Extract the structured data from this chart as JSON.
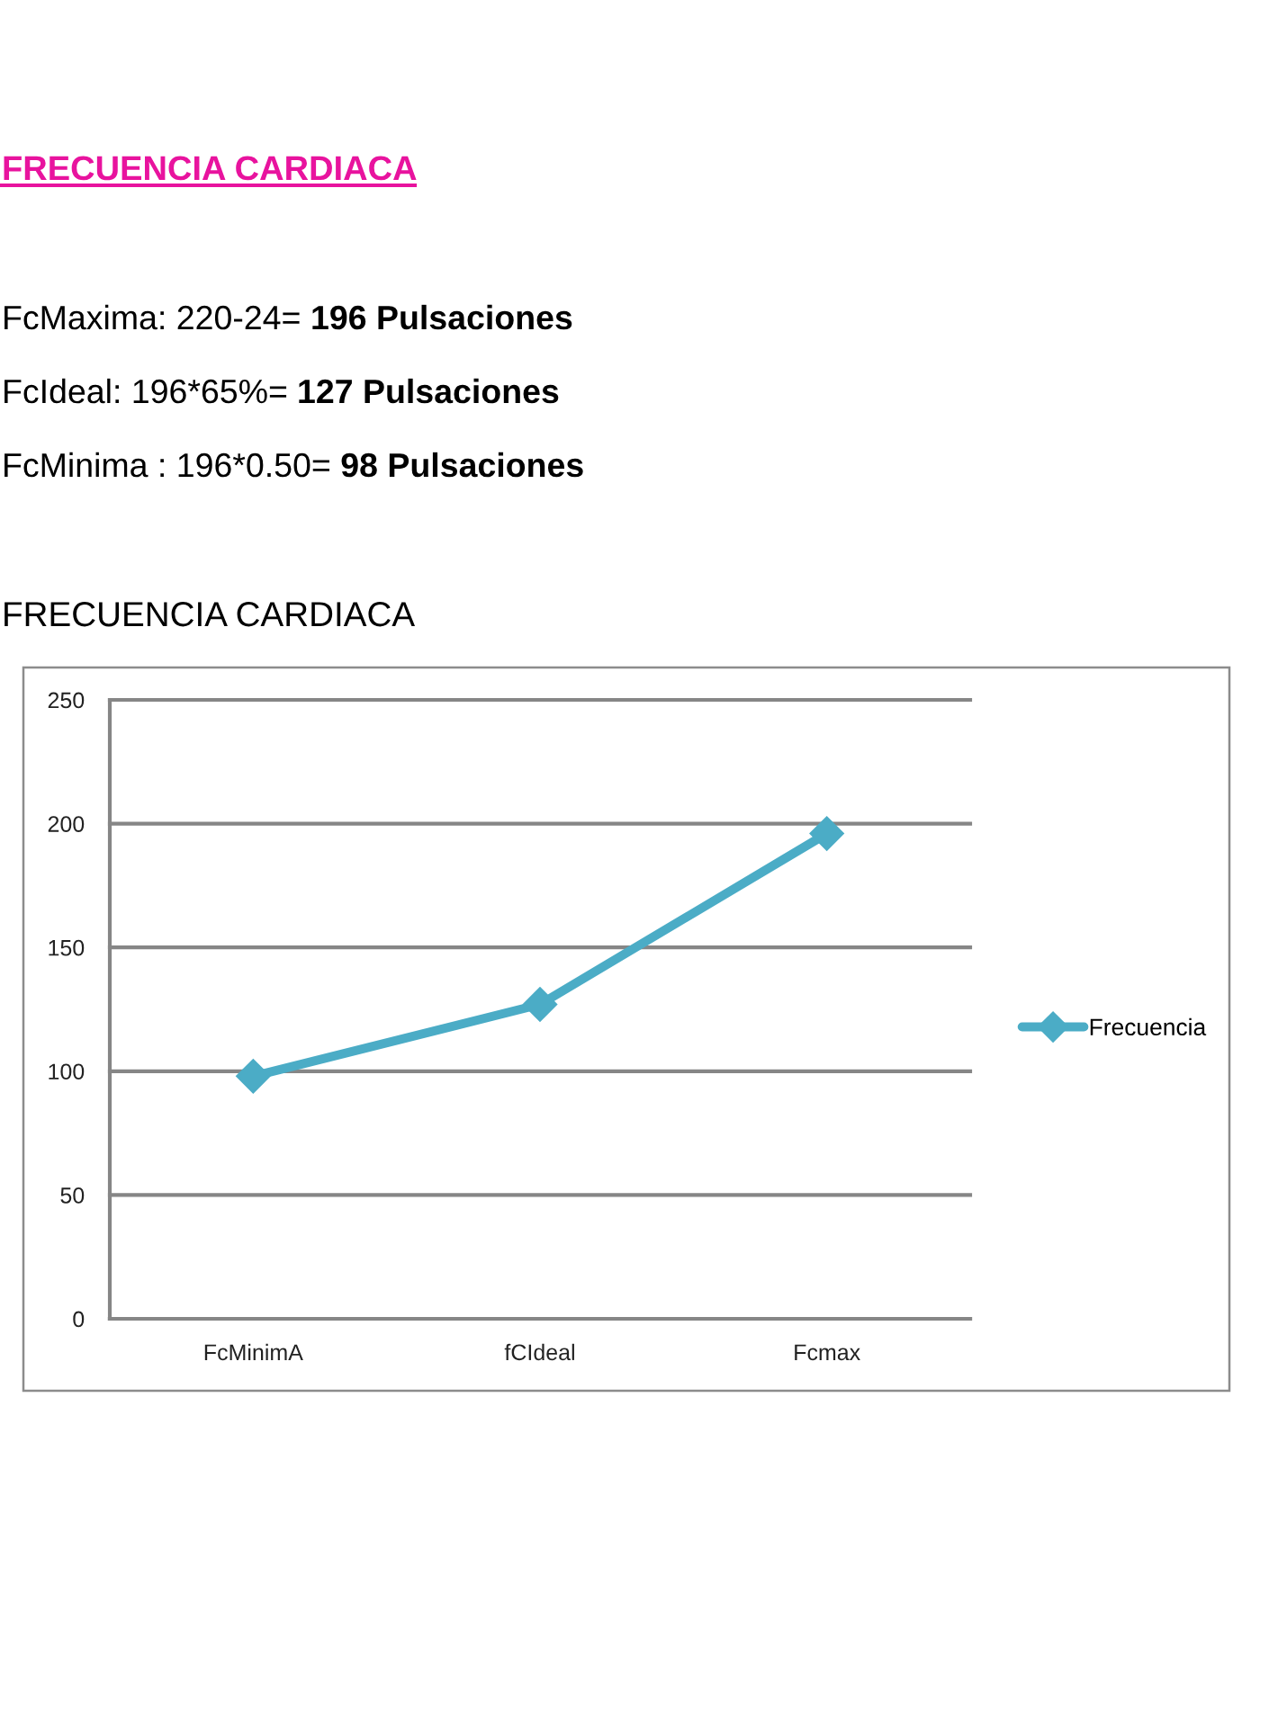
{
  "chart_data": {
    "type": "line",
    "title": "FRECUENCIA CARDIACA",
    "subtitle": "FRECUENCIA CARDIACA",
    "annotations": [
      "FcMaxima: 220-24=",
      "196 Pulsaciones",
      "FcIdeal: 196*65%=",
      "127 Pulsaciones",
      "FcMinima : 196*0.50=",
      "98 Pulsaciones"
    ],
    "categories": [
      "FcMinimA",
      "fCIdeal",
      "Fcmax"
    ],
    "series": [
      {
        "name": "Frecuencia",
        "color": "#4bacc6",
        "values": [
          98,
          127,
          196
        ]
      }
    ],
    "ylim": [
      0,
      250
    ],
    "yticks": [
      0,
      50,
      100,
      150,
      200,
      250
    ],
    "grid": "y",
    "legend": "right",
    "marker": "diamond",
    "line_style": "solid"
  }
}
